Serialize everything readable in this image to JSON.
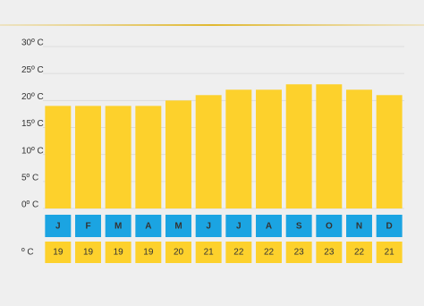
{
  "chart_data": {
    "type": "bar",
    "categories": [
      "J",
      "F",
      "M",
      "A",
      "M",
      "J",
      "J",
      "A",
      "S",
      "O",
      "N",
      "D"
    ],
    "values": [
      19,
      19,
      19,
      19,
      20,
      21,
      22,
      22,
      23,
      23,
      22,
      21
    ],
    "color": "#fdd12c",
    "month_color": "#1ba4e2",
    "table_label": "º C",
    "ylim": [
      0,
      30
    ],
    "yticks": [
      {
        "value": 0,
        "label": "0º C"
      },
      {
        "value": 5,
        "label": "5º C"
      },
      {
        "value": 10,
        "label": "10º C"
      },
      {
        "value": 15,
        "label": "15º C"
      },
      {
        "value": 20,
        "label": "20º C"
      },
      {
        "value": 25,
        "label": "25º C"
      },
      {
        "value": 30,
        "label": "30º C"
      }
    ],
    "grid": true
  }
}
